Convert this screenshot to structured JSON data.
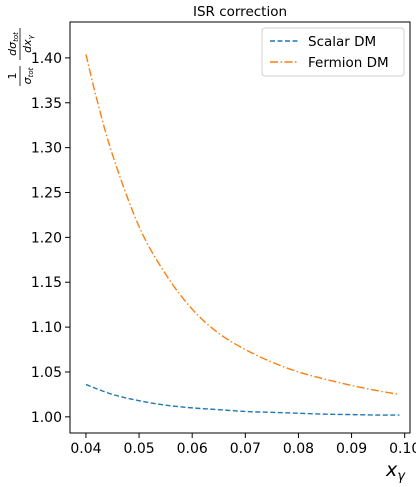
{
  "chart_data": {
    "type": "line",
    "title": "ISR correction",
    "xlabel": "x",
    "xlabel_sub": "γ",
    "ylabel": {
      "prefix_num": "1",
      "prefix_den": "σ",
      "prefix_den_sub": "tot",
      "num": "dσ",
      "num_sub": "tot",
      "den": "dx",
      "den_sub": "γ"
    },
    "xlim": [
      0.037,
      0.101
    ],
    "ylim": [
      0.982,
      1.44
    ],
    "xticks": [
      0.04,
      0.05,
      0.06,
      0.07,
      0.08,
      0.09,
      0.1
    ],
    "xtick_labels": [
      "0.04",
      "0.05",
      "0.06",
      "0.07",
      "0.08",
      "0.09",
      "0.10"
    ],
    "yticks": [
      1.0,
      1.05,
      1.1,
      1.15,
      1.2,
      1.25,
      1.3,
      1.35,
      1.4
    ],
    "ytick_labels": [
      "1.00",
      "1.05",
      "1.10",
      "1.15",
      "1.20",
      "1.25",
      "1.30",
      "1.35",
      "1.40"
    ],
    "legend_position": "top-right",
    "grid": false,
    "series": [
      {
        "name": "Scalar DM",
        "color": "#1f77b4",
        "style": "dashed",
        "x": [
          0.04,
          0.045,
          0.05,
          0.055,
          0.06,
          0.065,
          0.07,
          0.075,
          0.08,
          0.085,
          0.09,
          0.095,
          0.099
        ],
        "y": [
          1.036,
          1.025,
          1.018,
          1.013,
          1.01,
          1.008,
          1.006,
          1.005,
          1.004,
          1.003,
          1.0025,
          1.002,
          1.002
        ]
      },
      {
        "name": "Fermion DM",
        "color": "#ff7f0e",
        "style": "dashdot",
        "x": [
          0.04,
          0.042,
          0.045,
          0.05,
          0.055,
          0.06,
          0.065,
          0.07,
          0.075,
          0.08,
          0.085,
          0.09,
          0.095,
          0.099
        ],
        "y": [
          1.404,
          1.355,
          1.292,
          1.212,
          1.159,
          1.12,
          1.093,
          1.075,
          1.061,
          1.05,
          1.042,
          1.035,
          1.029,
          1.025
        ]
      }
    ]
  }
}
